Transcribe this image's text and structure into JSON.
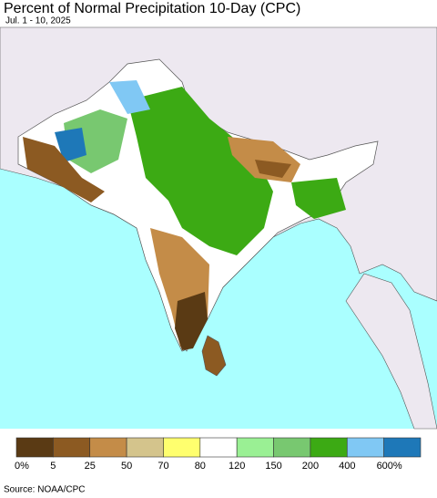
{
  "title": "Percent of Normal Precipitation 10-Day (CPC)",
  "subtitle": "Jul. 1 - 10, 2025",
  "legend": {
    "colors": [
      "#5a3a14",
      "#8c5a22",
      "#c48c48",
      "#d4c48c",
      "#ffff6e",
      "#ffffff",
      "#9af094",
      "#78c870",
      "#3caa14",
      "#80c8f4",
      "#1e78b8"
    ],
    "labels": [
      "0%",
      "5",
      "25",
      "50",
      "70",
      "80",
      "120",
      "150",
      "200",
      "400",
      "600%"
    ]
  },
  "source": "Source: NOAA/CPC"
}
